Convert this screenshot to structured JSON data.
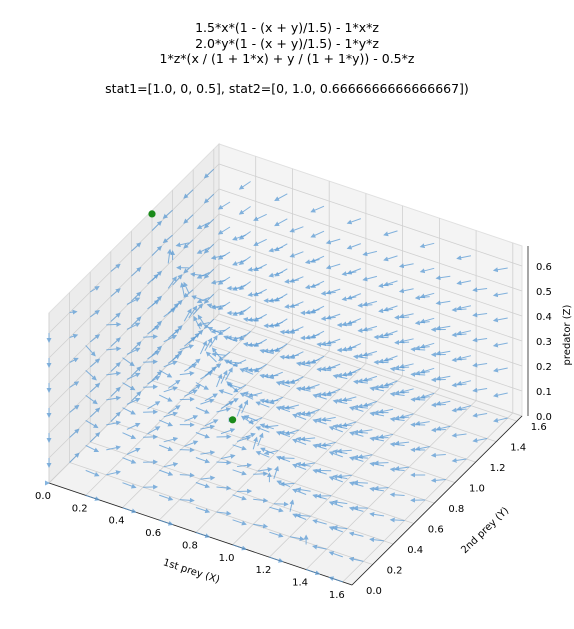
{
  "chart_data": {
    "type": "quiver3d",
    "title_lines": [
      "1.5*x*(1 - (x + y)/1.5) - 1*x*z",
      "2.0*y*(1 - (x + y)/1.5) - 1*y*z",
      "1*z*(x / (1 + 1*x) + y / (1 + 1*y)) - 0.5*z",
      "",
      "stat1=[1.0, 0, 0.5], stat2=[0, 1.0, 0.6666666666666667])"
    ],
    "xlabel": "1st prey (X)",
    "ylabel": "2nd prey (Y)",
    "zlabel": "predator (Z)",
    "xlim": [
      0,
      1.65
    ],
    "ylim": [
      0,
      1.65
    ],
    "zlim": [
      0,
      0.68
    ],
    "xticks": [
      "0.0",
      "0.2",
      "0.4",
      "0.6",
      "0.8",
      "1.0",
      "1.2",
      "1.4",
      "1.6"
    ],
    "yticks": [
      "0.0",
      "0.2",
      "0.4",
      "0.6",
      "0.8",
      "1.0",
      "1.2",
      "1.4",
      "1.6"
    ],
    "zticks": [
      "0.0",
      "0.1",
      "0.2",
      "0.3",
      "0.4",
      "0.5",
      "0.6"
    ],
    "equations": {
      "r1": 1.5,
      "r2": 2.0,
      "K": 1.5,
      "a1": 1,
      "a2": 1,
      "b1": 1,
      "b2": 1,
      "c": 1,
      "d": 0.5
    },
    "stationary_points": [
      {
        "x": 1.0,
        "y": 0,
        "z": 0.5
      },
      {
        "x": 0,
        "y": 1.0,
        "z": 0.6666666666666667
      }
    ],
    "colors": {
      "arrow": "#5b9bd5",
      "point": "#1a8a1a",
      "pane": "#f2f2f2",
      "grid": "#d0d0d0"
    }
  }
}
